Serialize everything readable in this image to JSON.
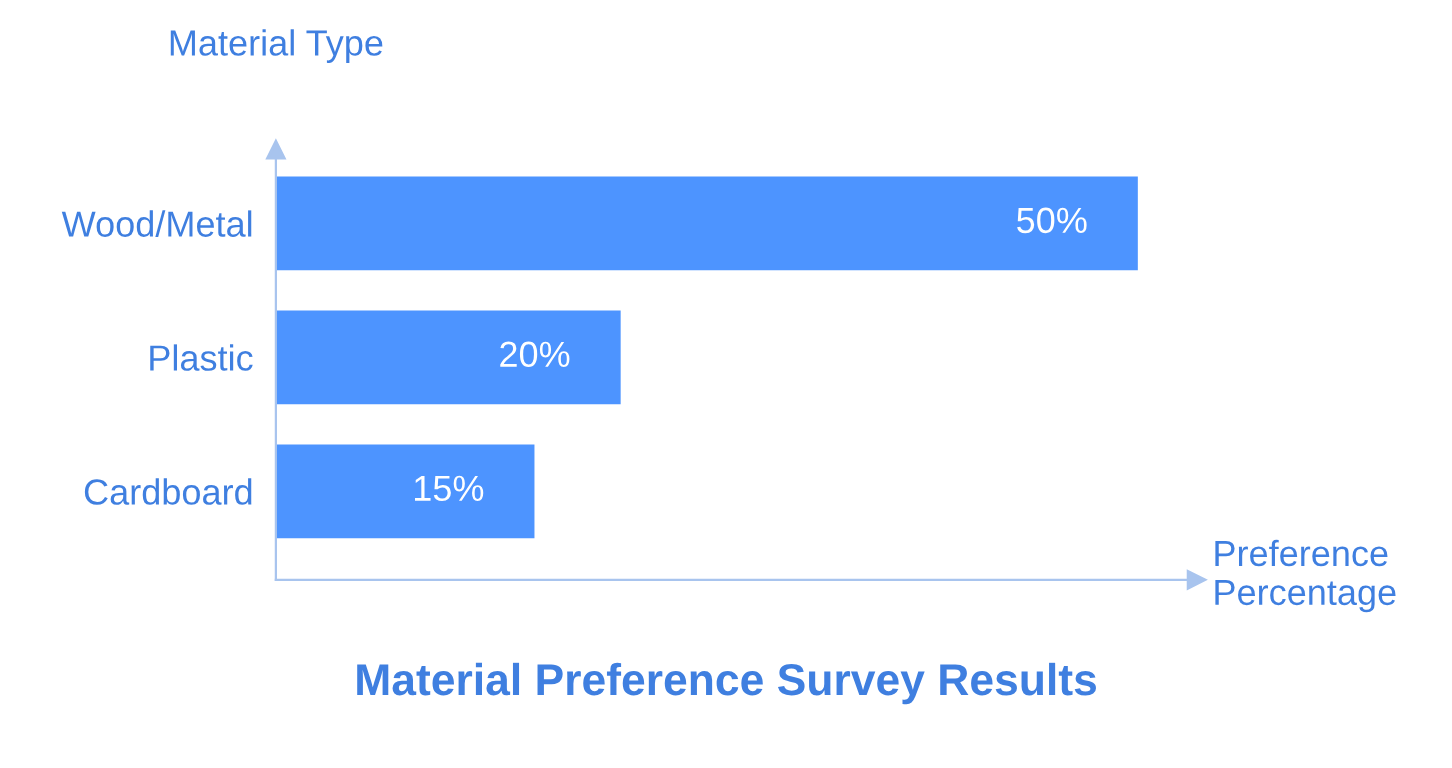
{
  "chart_data": {
    "type": "bar",
    "orientation": "horizontal",
    "title": "Material Preference Survey Results",
    "xlabel": "Preference Percentage",
    "ylabel": "Material Type",
    "categories": [
      "Wood/Metal",
      "Plastic",
      "Cardboard"
    ],
    "values": [
      50,
      20,
      15
    ],
    "value_labels": [
      "50%",
      "20%",
      "15%"
    ],
    "color": "#4d94ff",
    "xlim": [
      0,
      53.4
    ],
    "tick_labels": "y",
    "grid": false,
    "legend": false
  }
}
